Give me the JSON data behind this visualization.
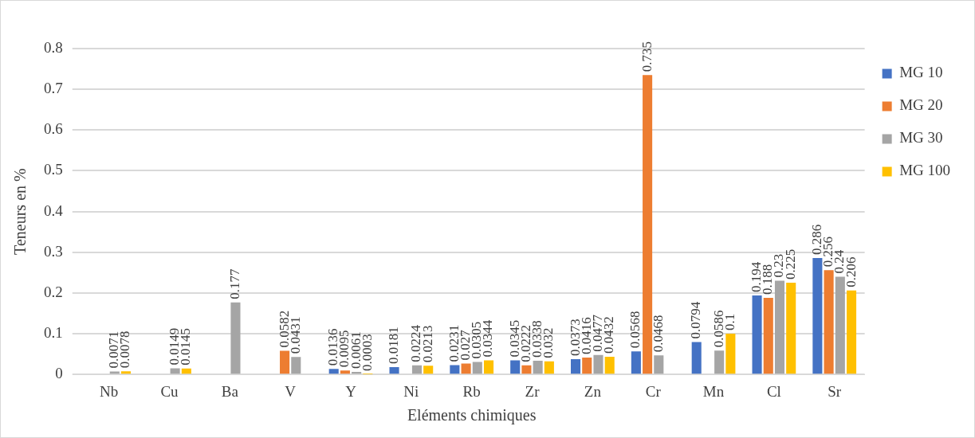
{
  "chart_data": {
    "type": "bar",
    "xlabel": "Eléments chimiques",
    "ylabel": "Teneurs en %",
    "categories": [
      "Nb",
      "Cu",
      "Ba",
      "V",
      "Y",
      "Ni",
      "Rb",
      "Zr",
      "Zn",
      "Cr",
      "Mn",
      "Cl",
      "Sr"
    ],
    "series": [
      {
        "name": "MG 10",
        "color": "#4472c4",
        "values": [
          null,
          null,
          null,
          null,
          0.0136,
          0.0181,
          0.0231,
          0.0345,
          0.0373,
          0.0568,
          0.0794,
          0.194,
          0.286
        ]
      },
      {
        "name": "MG 20",
        "color": "#ed7d31",
        "values": [
          null,
          null,
          null,
          0.0582,
          0.0095,
          null,
          0.027,
          0.0222,
          0.0416,
          0.735,
          null,
          0.188,
          0.256
        ]
      },
      {
        "name": "MG 30",
        "color": "#a5a5a5",
        "values": [
          0.0071,
          0.0149,
          0.177,
          0.0431,
          0.0061,
          0.0224,
          0.0305,
          0.0338,
          0.0477,
          0.0468,
          0.0586,
          0.23,
          0.24
        ]
      },
      {
        "name": "MG 100",
        "color": "#ffc000",
        "values": [
          0.0078,
          0.0145,
          null,
          null,
          0.0003,
          0.0213,
          0.0344,
          0.032,
          0.0432,
          null,
          0.1,
          0.225,
          0.206
        ]
      }
    ],
    "ylim": [
      0,
      0.8
    ],
    "yticks": [
      0,
      0.1,
      0.2,
      0.3,
      0.4,
      0.5,
      0.6,
      0.7,
      0.8
    ],
    "grid": "y",
    "legend": "top right",
    "data_labels": true
  }
}
